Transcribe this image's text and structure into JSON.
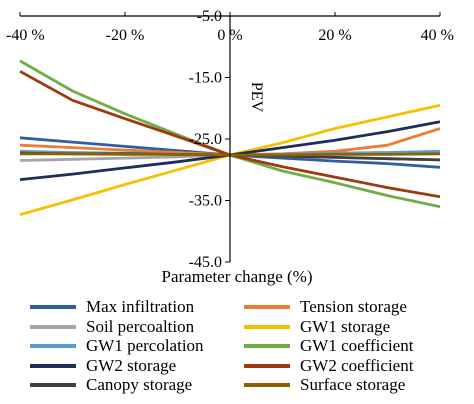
{
  "chart_data": {
    "type": "line",
    "xlabel": "Parameter change (%)",
    "ylabel": "PEV",
    "xlim": [
      -40,
      40
    ],
    "ylim": [
      -45,
      -5
    ],
    "x_ticks": [
      "-40 %",
      "-20 %",
      "0 %",
      "20 %",
      "40 %"
    ],
    "y_ticks": [
      "-5.0",
      "-15.0",
      "-25.0",
      "-35.0",
      "-45.0"
    ],
    "x": [
      -40,
      -30,
      -20,
      -10,
      0,
      10,
      20,
      30,
      40
    ],
    "series": [
      {
        "name": "Max infiltration",
        "color": "#2e5fa6",
        "values": [
          -24.8,
          -25.5,
          -26.2,
          -26.9,
          -27.6,
          -28.1,
          -28.6,
          -29.0,
          -29.6
        ]
      },
      {
        "name": "Tension storage",
        "color": "#ed7d31",
        "values": [
          -26.0,
          -26.4,
          -26.8,
          -27.2,
          -27.6,
          -27.4,
          -27.0,
          -26.0,
          -23.3
        ]
      },
      {
        "name": "Soil percoaltion",
        "color": "#a5a5a5",
        "values": [
          -28.5,
          -28.3,
          -28.1,
          -27.9,
          -27.6,
          -27.8,
          -28.0,
          -28.2,
          -28.4
        ]
      },
      {
        "name": "GW1 storage",
        "color": "#f5c000",
        "values": [
          -37.3,
          -34.9,
          -32.4,
          -30.0,
          -27.6,
          -25.6,
          -23.3,
          -21.4,
          -19.5
        ]
      },
      {
        "name": "GW1 percolation",
        "color": "#5b9bd5",
        "values": [
          -27.0,
          -27.2,
          -27.3,
          -27.5,
          -27.6,
          -27.5,
          -27.3,
          -27.2,
          -27.0
        ]
      },
      {
        "name": "GW1 coefficient",
        "color": "#70ad47",
        "values": [
          -12.3,
          -17.2,
          -20.9,
          -24.3,
          -27.6,
          -30.2,
          -32.1,
          -34.2,
          -36.0
        ]
      },
      {
        "name": "GW2 storage",
        "color": "#1f2d5a",
        "values": [
          -31.6,
          -30.7,
          -29.7,
          -28.7,
          -27.6,
          -26.4,
          -25.2,
          -23.8,
          -22.2
        ]
      },
      {
        "name": "GW2 coefficient",
        "color": "#9e3a0e",
        "values": [
          -14.0,
          -18.7,
          -21.7,
          -24.6,
          -27.6,
          -29.5,
          -31.2,
          -32.9,
          -34.4
        ]
      },
      {
        "name": "Canopy storage",
        "color": "#404040",
        "values": [
          -27.3,
          -27.4,
          -27.4,
          -27.5,
          -27.6,
          -27.8,
          -28.0,
          -28.2,
          -28.4
        ]
      },
      {
        "name": "Surface storage",
        "color": "#8c6100",
        "values": [
          -27.4,
          -27.4,
          -27.5,
          -27.5,
          -27.6,
          -27.6,
          -27.5,
          -27.5,
          -27.4
        ]
      }
    ],
    "legend_placement": "bottom",
    "grid": false
  },
  "legend": {
    "items": [
      "Max infiltration",
      "Tension storage",
      "Soil percoaltion",
      "GW1 storage",
      "GW1 percolation",
      "GW1 coefficient",
      "GW2 storage",
      "GW2 coefficient",
      "Canopy storage",
      "Surface storage"
    ]
  }
}
